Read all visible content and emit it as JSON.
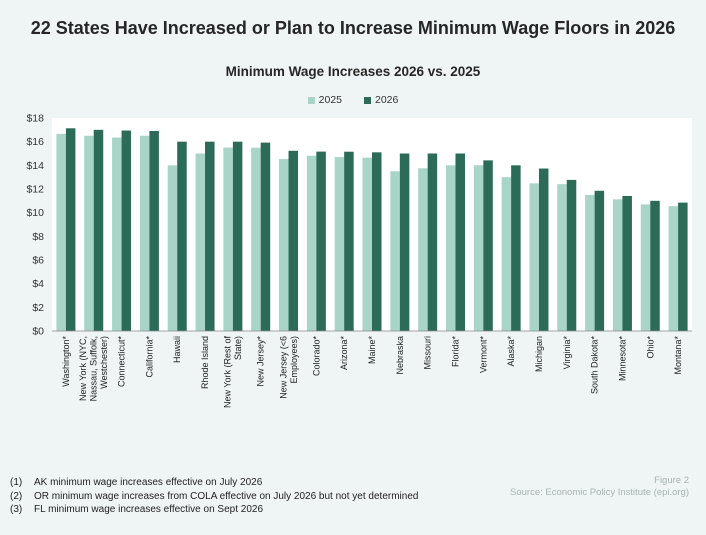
{
  "title": "22 States Have Increased or Plan to Increase Minimum Wage Floors in 2026",
  "colors": {
    "s2025": "#a8d5c8",
    "s2026": "#2b6b58",
    "plot_bg": "#ffffff",
    "page_bg": "#eef5f4"
  },
  "chart_data": {
    "type": "bar",
    "title": "Minimum Wage Increases 2026 vs. 2025",
    "xlabel": "",
    "ylabel": "",
    "ylim": [
      0,
      18
    ],
    "y_ticks": [
      "$0",
      "$2",
      "$4",
      "$6",
      "$8",
      "$10",
      "$12",
      "$14",
      "$16",
      "$18"
    ],
    "grid": false,
    "legend_position": "top-center",
    "categories": [
      "Washington*",
      "New York (NYC, Nassau, Suffolk, Westchester)",
      "Connecticut*",
      "California*",
      "Hawaii",
      "Rhode Island",
      "New York (Rest of State)",
      "New Jersey*",
      "New Jersey (<6 Employees)",
      "Colorado*",
      "Arizona*",
      "Maine*",
      "Nebraska",
      "Missouri",
      "Florida*",
      "Vermont*",
      "Alaska*",
      "Michigan",
      "Virginia*",
      "South Dakota*",
      "Minnesota*",
      "Ohio*",
      "Montana*"
    ],
    "series": [
      {
        "name": "2025",
        "values": [
          16.66,
          16.5,
          16.35,
          16.5,
          14.0,
          15.0,
          15.5,
          15.49,
          14.53,
          14.81,
          14.7,
          14.65,
          13.5,
          13.75,
          14.0,
          14.01,
          13.0,
          12.48,
          12.41,
          11.5,
          11.13,
          10.7,
          10.55
        ]
      },
      {
        "name": "2026",
        "values": [
          17.13,
          17.0,
          16.94,
          16.9,
          16.0,
          16.0,
          16.0,
          15.92,
          15.23,
          15.16,
          15.15,
          15.1,
          15.0,
          15.0,
          15.0,
          14.42,
          14.0,
          13.73,
          12.77,
          11.85,
          11.41,
          11.0,
          10.85
        ]
      }
    ]
  },
  "footnotes": [
    {
      "num": "(1)",
      "text": "AK minimum wage increases effective on July 2026"
    },
    {
      "num": "(2)",
      "text": "OR minimum wage increases from COLA effective on July 2026 but not yet determined"
    },
    {
      "num": "(3)",
      "text": "FL minimum wage increases effective on Sept 2026"
    }
  ],
  "figure_label": "Figure 2",
  "source": "Source: Economic Policy Institute (epi.org)"
}
